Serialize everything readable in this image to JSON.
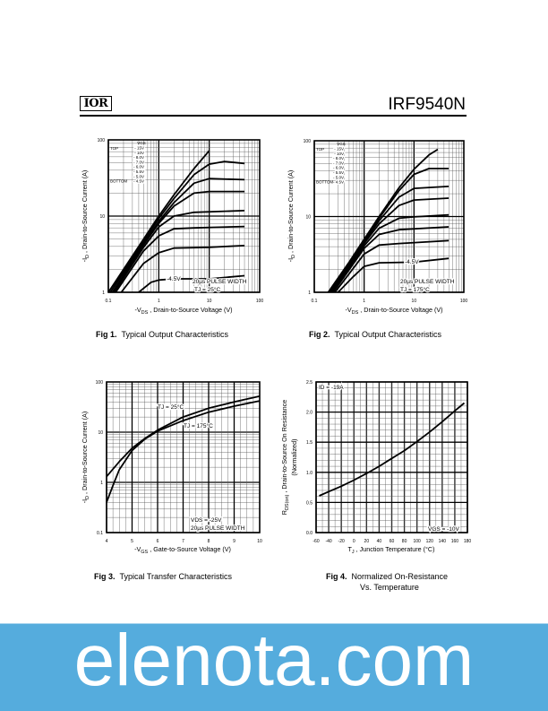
{
  "header": {
    "logo_text": "IOR",
    "part_number": "IRF9540N"
  },
  "banner": {
    "text": "elenota.com",
    "color": "#55acdd"
  },
  "figures": [
    {
      "num": "Fig 1.",
      "caption": "Typical Output Characteristics"
    },
    {
      "num": "Fig 2.",
      "caption": "Typical Output Characteristics"
    },
    {
      "num": "Fig 3.",
      "caption": "Typical Transfer Characteristics"
    },
    {
      "num": "Fig 4.",
      "caption": "Normalized On-Resistance",
      "caption2": "Vs. Temperature"
    }
  ],
  "chart_data": [
    {
      "type": "line",
      "xscale": "log",
      "yscale": "log",
      "xlim": [
        0.1,
        100
      ],
      "ylim": [
        1,
        100
      ],
      "xticks": [
        "0.1",
        "1",
        "10",
        "100"
      ],
      "yticks": [
        "1",
        "10",
        "100"
      ],
      "grid": true,
      "xlabel": {
        "pre": "-V",
        "sub": "DS",
        "post": " , Drain-to-Source Voltage (V)"
      },
      "ylabel": {
        "pre": "-I",
        "sub": "D",
        "post": " , Drain-to-Source Current (A)"
      },
      "legend": {
        "header": "VGS",
        "top": "TOP",
        "bottom": "BOTTOM",
        "placement": "top-left",
        "entries": [
          "- 15V",
          "- 10V",
          "- 8.0V",
          "- 7.0V",
          "- 6.0V",
          "- 5.5V",
          "- 5.0V",
          "- 4.5V"
        ]
      },
      "annotations": [
        "-4.5V",
        "20µs PULSE WIDTH",
        "TJ = 25°C"
      ],
      "series": [
        {
          "name": "-15V",
          "points": [
            [
              0.1,
              1
            ],
            [
              0.2,
              2
            ],
            [
              0.5,
              5
            ],
            [
              1,
              10
            ],
            [
              2,
              19
            ],
            [
              5,
              42
            ],
            [
              10,
              72
            ]
          ]
        },
        {
          "name": "-10V",
          "points": [
            [
              0.1,
              0.95
            ],
            [
              0.2,
              1.9
            ],
            [
              0.5,
              4.7
            ],
            [
              1,
              9.3
            ],
            [
              2,
              17
            ],
            [
              5,
              35
            ],
            [
              10,
              48
            ],
            [
              20,
              52
            ],
            [
              50,
              49
            ]
          ]
        },
        {
          "name": "-8.0V",
          "points": [
            [
              0.11,
              1
            ],
            [
              0.2,
              1.8
            ],
            [
              0.5,
              4.4
            ],
            [
              1,
              8.5
            ],
            [
              2,
              15
            ],
            [
              5,
              27
            ],
            [
              10,
              31
            ],
            [
              50,
              30
            ]
          ]
        },
        {
          "name": "-7.0V",
          "points": [
            [
              0.12,
              1
            ],
            [
              0.5,
              4.2
            ],
            [
              1,
              8
            ],
            [
              2,
              13.5
            ],
            [
              5,
              20
            ],
            [
              10,
              21
            ],
            [
              50,
              21
            ]
          ]
        },
        {
          "name": "-6.0V",
          "points": [
            [
              0.13,
              1
            ],
            [
              0.5,
              3.9
            ],
            [
              1,
              7.2
            ],
            [
              2,
              10
            ],
            [
              5,
              11.2
            ],
            [
              50,
              11.8
            ]
          ]
        },
        {
          "name": "-5.5V",
          "points": [
            [
              0.14,
              1
            ],
            [
              0.5,
              3.5
            ],
            [
              1,
              5.5
            ],
            [
              2,
              6.8
            ],
            [
              5,
              7
            ],
            [
              50,
              7.3
            ]
          ]
        },
        {
          "name": "-5.0V",
          "points": [
            [
              0.18,
              1
            ],
            [
              0.5,
              2.4
            ],
            [
              1,
              3.3
            ],
            [
              2,
              3.8
            ],
            [
              10,
              3.9
            ],
            [
              50,
              4.1
            ]
          ]
        },
        {
          "name": "-4.5V",
          "points": [
            [
              0.4,
              1
            ],
            [
              0.7,
              1.35
            ],
            [
              1,
              1.45
            ],
            [
              2,
              1.5
            ],
            [
              10,
              1.5
            ],
            [
              50,
              1.65
            ]
          ]
        }
      ]
    },
    {
      "type": "line",
      "xscale": "log",
      "yscale": "log",
      "xlim": [
        0.1,
        100
      ],
      "ylim": [
        1,
        100
      ],
      "xticks": [
        "0.1",
        "1",
        "10",
        "100"
      ],
      "yticks": [
        "1",
        "10",
        "100"
      ],
      "grid": true,
      "xlabel": {
        "pre": "-V",
        "sub": "DS",
        "post": " , Drain-to-Source Voltage (V)"
      },
      "ylabel": {
        "pre": "-I",
        "sub": "D",
        "post": " , Drain-to-Source Current (A)"
      },
      "legend": {
        "header": "VGS",
        "top": "TOP",
        "bottom": "BOTTOM",
        "placement": "top-left",
        "entries": [
          "- 15V",
          "- 10V",
          "- 8.0V",
          "- 7.0V",
          "- 6.0V",
          "- 5.5V",
          "- 5.0V",
          "- 4.5V"
        ]
      },
      "annotations": [
        "-4.5V",
        "20µs PULSE WIDTH",
        "TJ = 175°C"
      ],
      "series": [
        {
          "name": "-15V",
          "points": [
            [
              0.19,
              1
            ],
            [
              0.5,
              2.5
            ],
            [
              1,
              5
            ],
            [
              2,
              10
            ],
            [
              5,
              24
            ],
            [
              10,
              42
            ],
            [
              20,
              65
            ],
            [
              30,
              77
            ]
          ]
        },
        {
          "name": "-10V",
          "points": [
            [
              0.2,
              1
            ],
            [
              0.5,
              2.4
            ],
            [
              1,
              4.8
            ],
            [
              2,
              9.5
            ],
            [
              5,
              22
            ],
            [
              10,
              36
            ],
            [
              20,
              43
            ],
            [
              50,
              43
            ]
          ]
        },
        {
          "name": "-8.0V",
          "points": [
            [
              0.21,
              1
            ],
            [
              1,
              4.6
            ],
            [
              2,
              8.8
            ],
            [
              5,
              18
            ],
            [
              10,
              23.5
            ],
            [
              50,
              25
            ]
          ]
        },
        {
          "name": "-7.0V",
          "points": [
            [
              0.22,
              1
            ],
            [
              1,
              4.4
            ],
            [
              2,
              8
            ],
            [
              5,
              14
            ],
            [
              10,
              16.5
            ],
            [
              50,
              17.5
            ]
          ]
        },
        {
          "name": "-6.0V",
          "points": [
            [
              0.23,
              1
            ],
            [
              1,
              4.1
            ],
            [
              2,
              7
            ],
            [
              5,
              9.5
            ],
            [
              10,
              9.9
            ],
            [
              50,
              10.5
            ]
          ]
        },
        {
          "name": "-5.5V",
          "points": [
            [
              0.24,
              1
            ],
            [
              1,
              3.8
            ],
            [
              2,
              5.8
            ],
            [
              5,
              6.7
            ],
            [
              50,
              7.3
            ]
          ]
        },
        {
          "name": "-5.0V",
          "points": [
            [
              0.26,
              1
            ],
            [
              1,
              3.2
            ],
            [
              2,
              4.2
            ],
            [
              5,
              4.4
            ],
            [
              50,
              4.8
            ]
          ]
        },
        {
          "name": "-4.5V",
          "points": [
            [
              0.3,
              1
            ],
            [
              0.6,
              1.6
            ],
            [
              1,
              2.2
            ],
            [
              2,
              2.45
            ],
            [
              10,
              2.5
            ],
            [
              50,
              2.8
            ]
          ]
        }
      ]
    },
    {
      "type": "line",
      "xscale": "linear",
      "yscale": "log",
      "xlim": [
        4,
        10
      ],
      "ylim": [
        0.1,
        100
      ],
      "xticks": [
        "4",
        "5",
        "6",
        "7",
        "8",
        "9",
        "10"
      ],
      "yticks": [
        "0.1",
        "1",
        "10",
        "100"
      ],
      "grid": true,
      "xlabel": {
        "pre": "-V",
        "sub": "GS",
        "post": " , Gate-to-Source Voltage (V)"
      },
      "ylabel": {
        "pre": "-I",
        "sub": "D",
        "post": " , Drain-to-Source Current (A)"
      },
      "annotations": [
        "TJ = 25°C",
        "TJ = 175°C",
        "VDS = -25V",
        "20µs PULSE WIDTH"
      ],
      "series": [
        {
          "name": "TJ = 25°C",
          "points": [
            [
              4,
              1.3
            ],
            [
              4.5,
              2.6
            ],
            [
              5,
              4.8
            ],
            [
              5.5,
              7.5
            ],
            [
              6,
              11
            ],
            [
              7,
              20
            ],
            [
              8,
              30
            ],
            [
              9,
              40
            ],
            [
              10,
              52
            ]
          ]
        },
        {
          "name": "TJ = 175°C",
          "points": [
            [
              4,
              0.4
            ],
            [
              4.3,
              1
            ],
            [
              4.5,
              1.8
            ],
            [
              5,
              4.3
            ],
            [
              5.5,
              7.3
            ],
            [
              6,
              10.5
            ],
            [
              7,
              17
            ],
            [
              8,
              25
            ],
            [
              9,
              33
            ],
            [
              10,
              42
            ]
          ]
        }
      ]
    },
    {
      "type": "line",
      "xscale": "linear",
      "yscale": "linear",
      "xlim": [
        -60,
        180
      ],
      "ylim": [
        0,
        2.5
      ],
      "xticks": [
        "-60",
        "-40",
        "-20",
        "0",
        "20",
        "40",
        "60",
        "80",
        "100",
        "120",
        "140",
        "160",
        "180"
      ],
      "yticks": [
        "0.0",
        "0.5",
        "1.0",
        "1.5",
        "2.0",
        "2.5"
      ],
      "grid": true,
      "xlabel": {
        "pre": "T",
        "sub": "J",
        "post": " , Junction Temperature (°C)"
      },
      "ylabel": {
        "pre": "R",
        "sub": "DS(on)",
        "post": " ,  Drain-to-Source On Resistance",
        "line2": "(Normalized)"
      },
      "annotations": [
        "ID = -19A",
        "VGS = -10V"
      ],
      "series": [
        {
          "points": [
            [
              -55,
              0.61
            ],
            [
              -40,
              0.68
            ],
            [
              -20,
              0.77
            ],
            [
              0,
              0.87
            ],
            [
              20,
              0.98
            ],
            [
              40,
              1.1
            ],
            [
              60,
              1.23
            ],
            [
              80,
              1.36
            ],
            [
              100,
              1.51
            ],
            [
              120,
              1.67
            ],
            [
              140,
              1.84
            ],
            [
              160,
              2.02
            ],
            [
              175,
              2.15
            ]
          ]
        }
      ]
    }
  ]
}
